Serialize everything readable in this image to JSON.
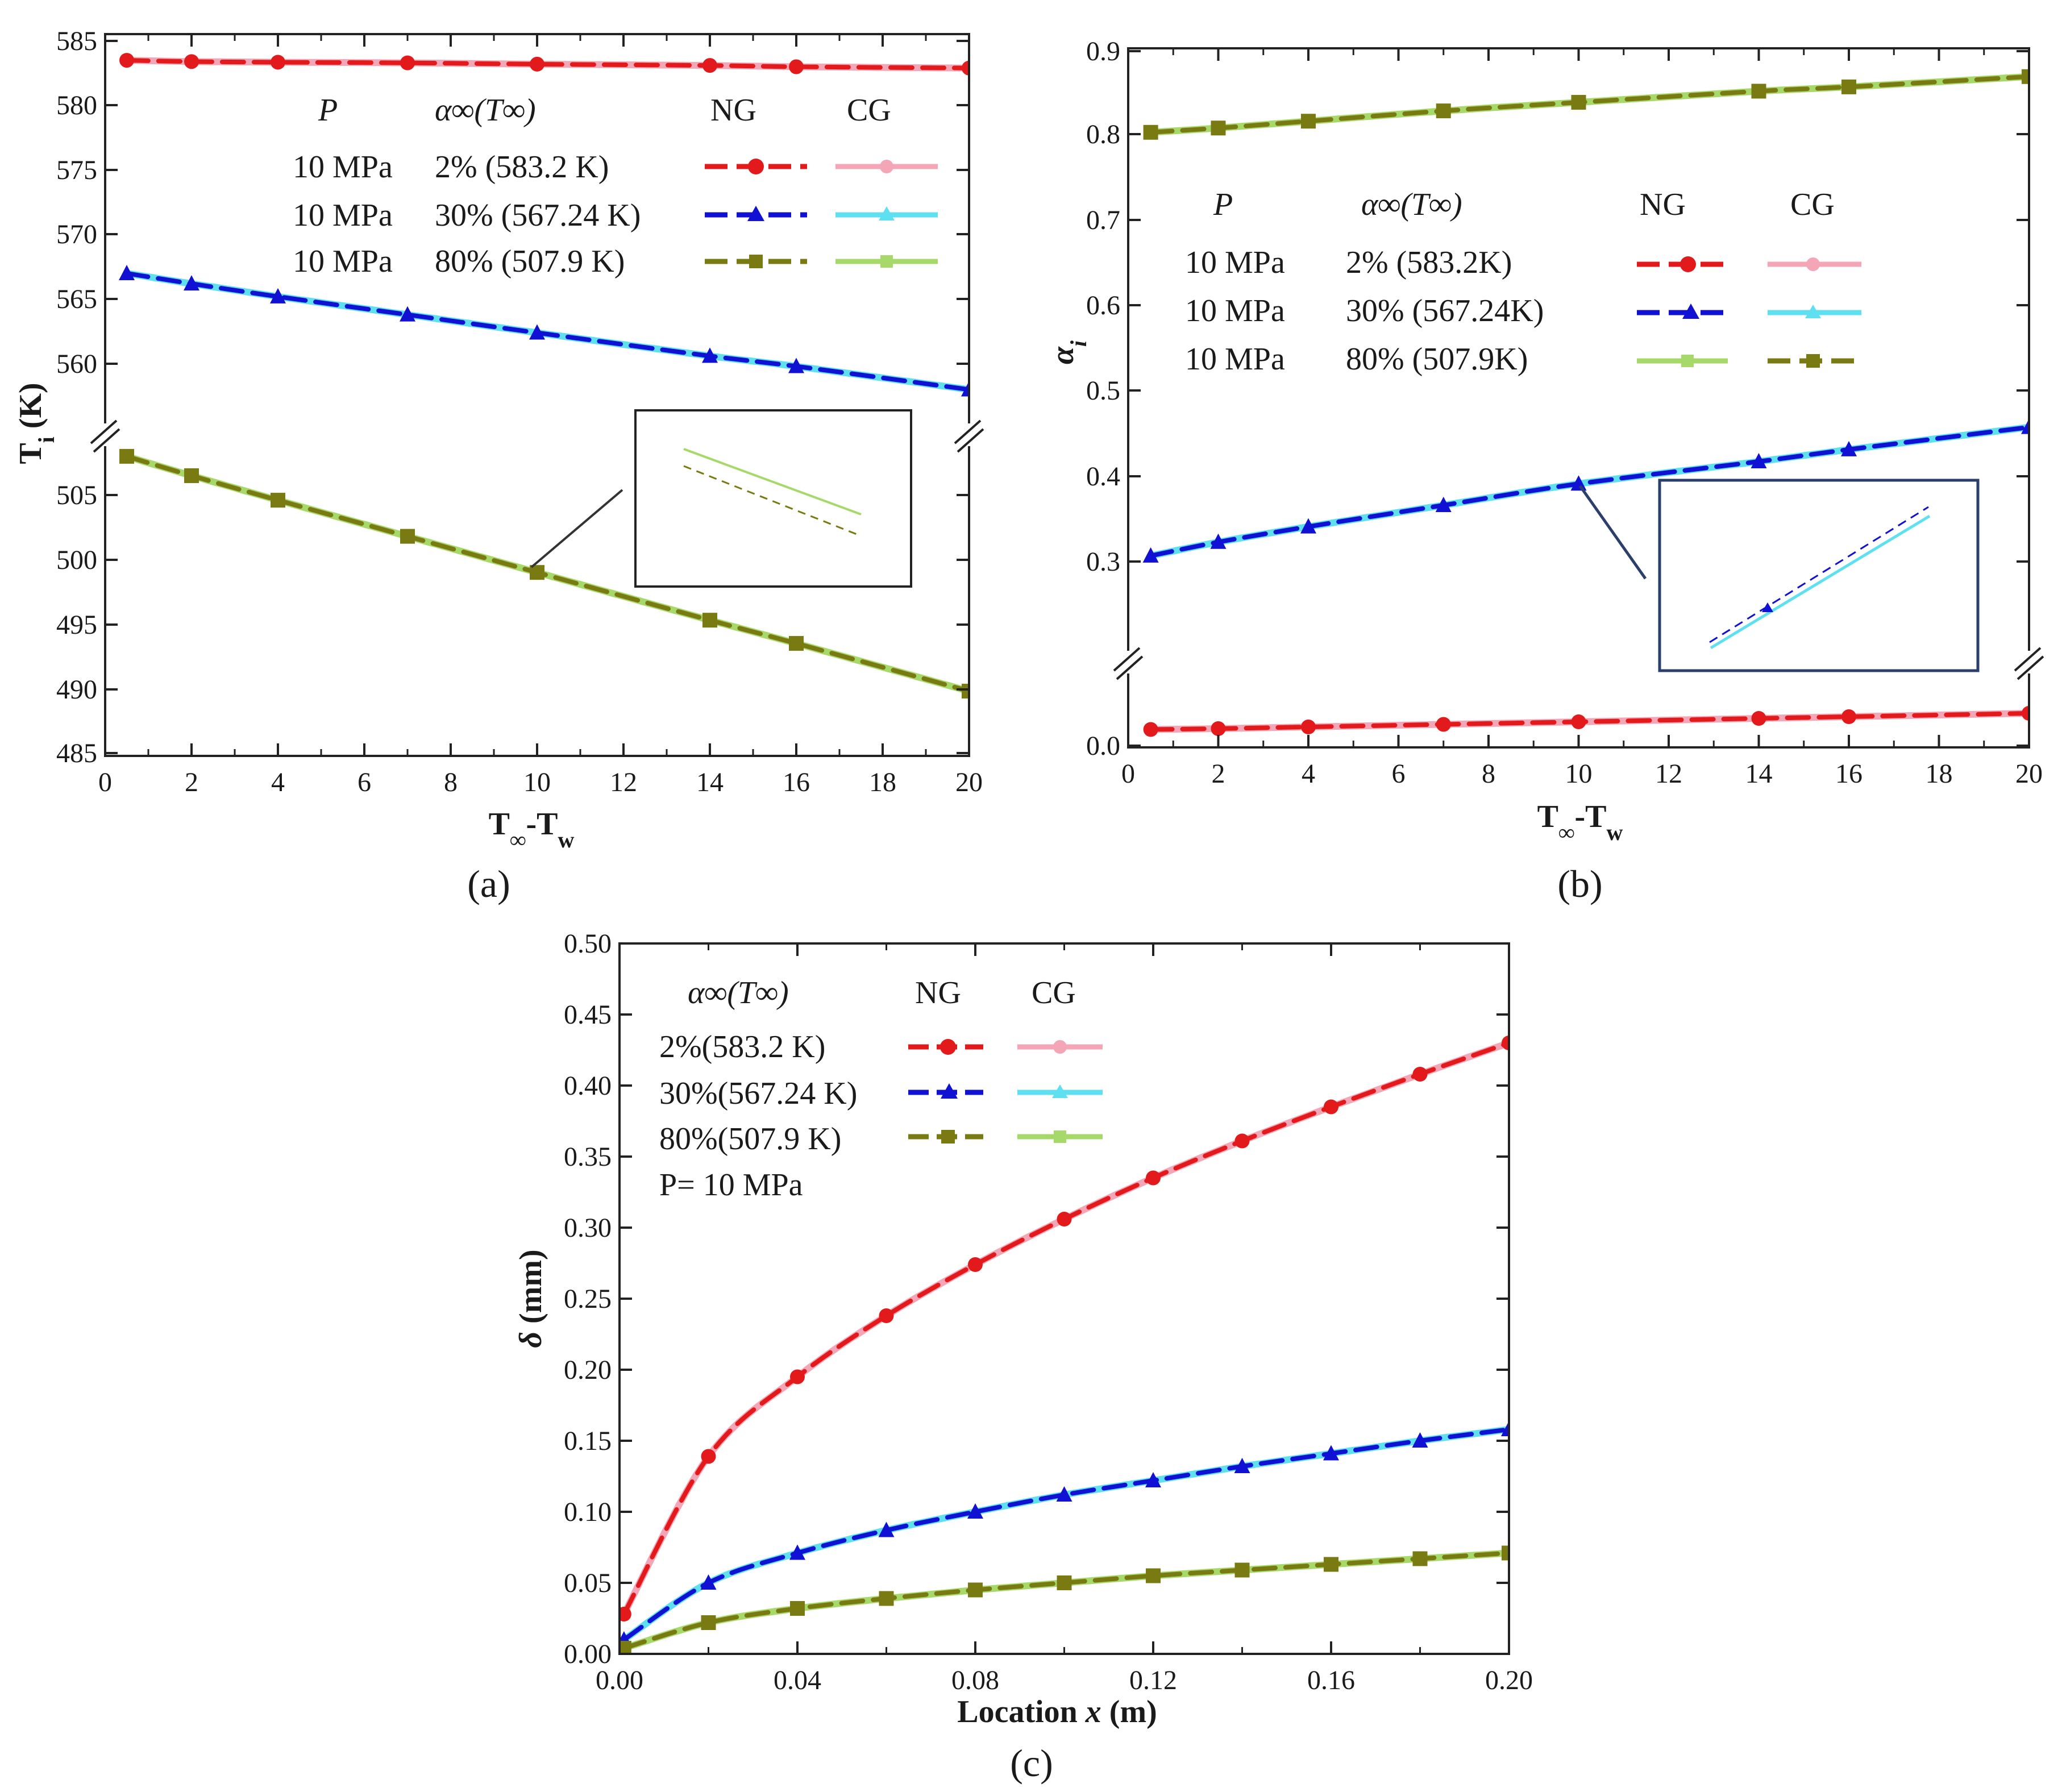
{
  "colors": {
    "ng_red": "#e31a1c",
    "cg_pink": "#f4a6b6",
    "ng_blue": "#1111d4",
    "cg_cyan": "#5fe0f0",
    "ng_olive": "#7a7a12",
    "cg_green": "#a6d96a",
    "inset_blue_frame": "#2b3f6c"
  },
  "chart_data": [
    {
      "panel": "a",
      "panel_label": "(a)",
      "type": "line",
      "xlabel": "T∞-Tw",
      "ylabel": "Ti (K)",
      "xlim": [
        0,
        20
      ],
      "ylim": [
        485,
        585
      ],
      "broken_axis": true,
      "x_ticks": [
        "0",
        "2",
        "4",
        "6",
        "8",
        "10",
        "12",
        "14",
        "16",
        "18",
        "20"
      ],
      "y_ticks": [
        "585",
        "580",
        "575",
        "570",
        "565",
        "560",
        "505",
        "500",
        "495",
        "490",
        "485"
      ],
      "legend": {
        "headers": [
          "P",
          "α∞(T∞)",
          "NG",
          "CG"
        ],
        "rows": [
          {
            "p": "10 MPa",
            "alpha": "2% (583.2 K)"
          },
          {
            "p": "10 MPa",
            "alpha": "30% (567.24 K)"
          },
          {
            "p": "10 MPa",
            "alpha": "80% (507.9 K)"
          }
        ]
      },
      "x": [
        0.5,
        2,
        4,
        7,
        10,
        14,
        16,
        20
      ],
      "series": [
        {
          "name": "2% NG",
          "model": "NG",
          "marker": "circle",
          "values": [
            583.5,
            583.4,
            583.35,
            583.3,
            583.2,
            583.1,
            583.0,
            582.9
          ]
        },
        {
          "name": "2% CG",
          "model": "CG",
          "marker": "circle",
          "values": [
            583.5,
            583.4,
            583.35,
            583.3,
            583.2,
            583.1,
            583.0,
            582.9
          ]
        },
        {
          "name": "30% NG",
          "model": "NG",
          "marker": "triangle",
          "values": [
            567.0,
            566.2,
            565.2,
            563.8,
            562.4,
            560.6,
            559.8,
            558.0
          ]
        },
        {
          "name": "30% CG",
          "model": "CG",
          "marker": "triangle",
          "values": [
            567.0,
            566.2,
            565.2,
            563.8,
            562.4,
            560.6,
            559.8,
            558.0
          ]
        },
        {
          "name": "80% NG",
          "model": "NG",
          "marker": "square",
          "values": [
            508.0,
            506.5,
            504.6,
            501.8,
            499.0,
            495.3,
            493.5,
            489.8
          ]
        },
        {
          "name": "80% CG",
          "model": "CG",
          "marker": "square",
          "values": [
            508.0,
            506.5,
            504.6,
            501.8,
            499.0,
            495.3,
            493.5,
            489.8
          ]
        }
      ]
    },
    {
      "panel": "b",
      "panel_label": "(b)",
      "type": "line",
      "xlabel": "T∞-Tw",
      "ylabel": "αi",
      "xlim": [
        0,
        20
      ],
      "ylim": [
        0.0,
        0.9
      ],
      "broken_axis": true,
      "x_ticks": [
        "0",
        "2",
        "4",
        "6",
        "8",
        "10",
        "12",
        "14",
        "16",
        "18",
        "20"
      ],
      "y_ticks": [
        "0.9",
        "0.8",
        "0.7",
        "0.6",
        "0.5",
        "0.4",
        "0.3",
        "0.0"
      ],
      "legend": {
        "headers": [
          "P",
          "α∞(T∞)",
          "NG",
          "CG"
        ],
        "rows": [
          {
            "p": "10 MPa",
            "alpha": "2% (583.2K)"
          },
          {
            "p": "10 MPa",
            "alpha": "30% (567.24K)"
          },
          {
            "p": "10 MPa",
            "alpha": "80% (507.9K)"
          }
        ]
      },
      "x": [
        0.5,
        2,
        4,
        7,
        10,
        14,
        16,
        20
      ],
      "series": [
        {
          "name": "2% NG",
          "model": "NG",
          "marker": "circle",
          "values": [
            0.021,
            0.022,
            0.024,
            0.027,
            0.03,
            0.034,
            0.036,
            0.04
          ]
        },
        {
          "name": "2% CG",
          "model": "CG",
          "marker": "circle",
          "values": [
            0.021,
            0.022,
            0.024,
            0.027,
            0.03,
            0.034,
            0.036,
            0.04
          ]
        },
        {
          "name": "30% NG",
          "model": "NG",
          "marker": "triangle",
          "values": [
            0.308,
            0.324,
            0.342,
            0.367,
            0.392,
            0.418,
            0.432,
            0.458
          ]
        },
        {
          "name": "30% CG",
          "model": "CG",
          "marker": "triangle",
          "values": [
            0.308,
            0.324,
            0.342,
            0.367,
            0.392,
            0.418,
            0.432,
            0.458
          ]
        },
        {
          "name": "80% NG",
          "model": "NG",
          "marker": "square",
          "values": [
            0.802,
            0.807,
            0.815,
            0.827,
            0.837,
            0.85,
            0.855,
            0.867
          ]
        },
        {
          "name": "80% CG",
          "model": "CG",
          "marker": "square",
          "values": [
            0.802,
            0.807,
            0.815,
            0.827,
            0.837,
            0.85,
            0.855,
            0.867
          ]
        }
      ]
    },
    {
      "panel": "c",
      "panel_label": "(c)",
      "type": "line",
      "xlabel": "Location x (m)",
      "ylabel": "δ (mm)",
      "xlim": [
        0,
        0.2
      ],
      "ylim": [
        0,
        0.5
      ],
      "x_ticks": [
        "0.00",
        "0.04",
        "0.08",
        "0.12",
        "0.16",
        "0.20"
      ],
      "y_ticks": [
        "0.00",
        "0.05",
        "0.10",
        "0.15",
        "0.20",
        "0.25",
        "0.30",
        "0.35",
        "0.40",
        "0.45",
        "0.50"
      ],
      "legend": {
        "headers": [
          "α∞(T∞)",
          "NG",
          "CG"
        ],
        "rows": [
          {
            "alpha": "2%(583.2 K)"
          },
          {
            "alpha": "30%(567.24 K)"
          },
          {
            "alpha": "80%(507.9 K)"
          }
        ],
        "note": "P= 10 MPa"
      },
      "x": [
        0.001,
        0.02,
        0.04,
        0.06,
        0.08,
        0.1,
        0.12,
        0.14,
        0.16,
        0.18,
        0.2
      ],
      "series": [
        {
          "name": "2% NG",
          "model": "NG",
          "marker": "circle",
          "values": [
            0.028,
            0.139,
            0.195,
            0.238,
            0.274,
            0.306,
            0.335,
            0.361,
            0.385,
            0.408,
            0.43
          ]
        },
        {
          "name": "2% CG",
          "model": "CG",
          "marker": "circle",
          "values": [
            0.028,
            0.139,
            0.195,
            0.238,
            0.274,
            0.306,
            0.335,
            0.361,
            0.385,
            0.408,
            0.43
          ]
        },
        {
          "name": "30% NG",
          "model": "NG",
          "marker": "triangle",
          "values": [
            0.01,
            0.05,
            0.071,
            0.087,
            0.1,
            0.112,
            0.122,
            0.132,
            0.141,
            0.15,
            0.158
          ]
        },
        {
          "name": "30% CG",
          "model": "CG",
          "marker": "triangle",
          "values": [
            0.01,
            0.05,
            0.071,
            0.087,
            0.1,
            0.112,
            0.122,
            0.132,
            0.141,
            0.15,
            0.158
          ]
        },
        {
          "name": "80% NG",
          "model": "NG",
          "marker": "square",
          "values": [
            0.004,
            0.022,
            0.032,
            0.039,
            0.045,
            0.05,
            0.055,
            0.059,
            0.063,
            0.067,
            0.071
          ]
        },
        {
          "name": "80% CG",
          "model": "CG",
          "marker": "square",
          "values": [
            0.004,
            0.022,
            0.032,
            0.039,
            0.045,
            0.05,
            0.055,
            0.059,
            0.063,
            0.067,
            0.071
          ]
        }
      ]
    }
  ]
}
